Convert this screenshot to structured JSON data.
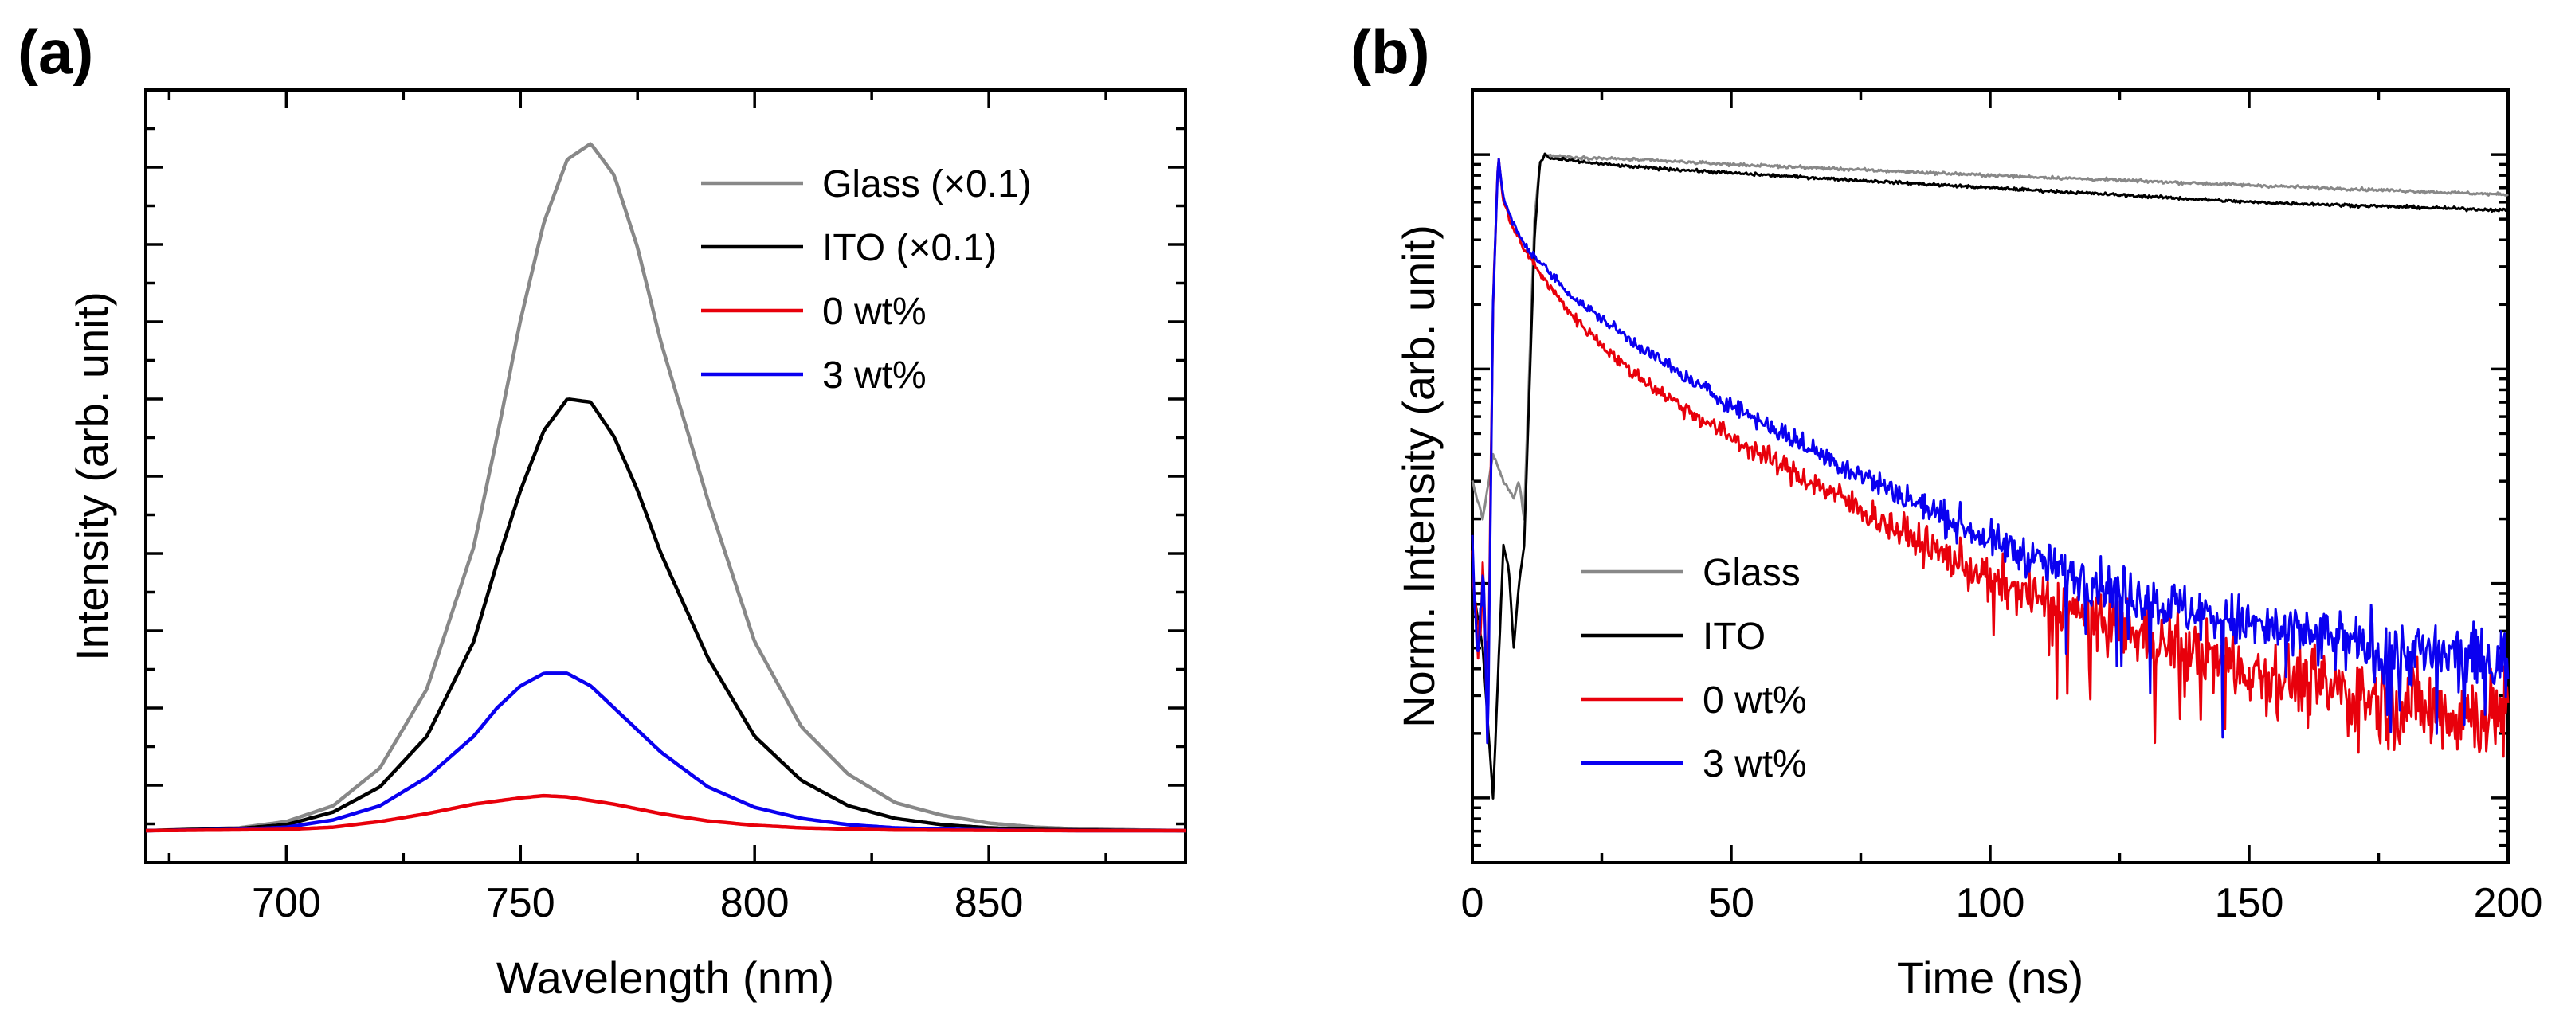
{
  "chart_data": [
    {
      "panel_label": "(a)",
      "type": "line",
      "xlabel": "Wavelength (nm)",
      "ylabel": "Intensity (arb. unit)",
      "xlim": [
        670,
        892
      ],
      "ylim": [
        -0.1,
        2.35
      ],
      "yticks_labeled": false,
      "y_scale": "linear",
      "x_ticks": [
        700,
        750,
        800,
        850
      ],
      "x_tick_labels": [
        "700",
        "750",
        "800",
        "850"
      ],
      "legend_position": "top-right",
      "series": [
        {
          "name": "Glass (×0.1)",
          "color": "#888888",
          "x": [
            670,
            690,
            700,
            710,
            720,
            730,
            740,
            745,
            750,
            755,
            760,
            765,
            770,
            775,
            780,
            790,
            800,
            810,
            820,
            830,
            840,
            850,
            860,
            870,
            892
          ],
          "y": [
            0.001,
            0.01,
            0.03,
            0.08,
            0.2,
            0.45,
            0.9,
            1.25,
            1.62,
            1.93,
            2.13,
            2.18,
            2.08,
            1.85,
            1.55,
            1.05,
            0.6,
            0.33,
            0.18,
            0.09,
            0.05,
            0.025,
            0.012,
            0.006,
            0.001
          ]
        },
        {
          "name": "ITO (×0.1)",
          "color": "#000000",
          "x": [
            670,
            690,
            700,
            710,
            720,
            730,
            740,
            745,
            750,
            755,
            760,
            765,
            770,
            775,
            780,
            790,
            800,
            810,
            820,
            830,
            840,
            850,
            860,
            870,
            892
          ],
          "y": [
            0.001,
            0.008,
            0.02,
            0.06,
            0.14,
            0.3,
            0.6,
            0.85,
            1.08,
            1.27,
            1.37,
            1.36,
            1.25,
            1.08,
            0.88,
            0.55,
            0.3,
            0.16,
            0.08,
            0.04,
            0.02,
            0.01,
            0.005,
            0.003,
            0.001
          ]
        },
        {
          "name": "0 wt%",
          "color": "#e8000b",
          "x": [
            670,
            700,
            710,
            720,
            730,
            740,
            750,
            755,
            760,
            770,
            780,
            790,
            800,
            810,
            820,
            830,
            850,
            870,
            892
          ],
          "y": [
            0.001,
            0.005,
            0.012,
            0.03,
            0.055,
            0.085,
            0.105,
            0.112,
            0.108,
            0.085,
            0.055,
            0.032,
            0.018,
            0.01,
            0.006,
            0.003,
            0.002,
            0.001,
            0.001
          ]
        },
        {
          "name": "3 wt%",
          "color": "#0a00f0",
          "x": [
            670,
            690,
            700,
            710,
            720,
            730,
            740,
            745,
            750,
            755,
            760,
            765,
            770,
            780,
            790,
            800,
            810,
            820,
            830,
            840,
            850,
            870,
            892
          ],
          "y": [
            0.001,
            0.005,
            0.012,
            0.035,
            0.08,
            0.17,
            0.3,
            0.39,
            0.46,
            0.5,
            0.5,
            0.46,
            0.39,
            0.25,
            0.14,
            0.075,
            0.04,
            0.02,
            0.01,
            0.006,
            0.003,
            0.001,
            0.001
          ]
        }
      ]
    },
    {
      "panel_label": "(b)",
      "type": "line",
      "xlabel": "Time (ns)",
      "ylabel": "Norm. Intensity (arb. unit)",
      "xlim": [
        0,
        200
      ],
      "y_scale": "log",
      "ylim": [
        0.0005,
        2
      ],
      "yticks_labeled": false,
      "x_ticks": [
        0,
        50,
        100,
        150,
        200
      ],
      "x_tick_labels": [
        "0",
        "50",
        "100",
        "150",
        "200"
      ],
      "legend_position": "bottom-left",
      "series": [
        {
          "name": "Glass",
          "color": "#888888",
          "x": [
            0,
            2,
            4,
            6,
            8,
            9,
            10,
            12,
            13,
            14,
            15,
            20,
            30,
            50,
            100,
            150,
            200
          ],
          "y": [
            0.03,
            0.02,
            0.04,
            0.03,
            0.025,
            0.03,
            0.02,
            0.5,
            0.9,
            1.0,
            0.99,
            0.97,
            0.95,
            0.9,
            0.8,
            0.72,
            0.65
          ]
        },
        {
          "name": "ITO",
          "color": "#000000",
          "x": [
            0,
            2,
            4,
            6,
            7,
            8,
            9,
            10,
            12,
            13,
            14,
            15,
            20,
            30,
            50,
            100,
            150,
            200
          ],
          "y": [
            0.01,
            0.005,
            0.001,
            0.015,
            0.012,
            0.005,
            0.01,
            0.015,
            0.4,
            0.9,
            1.0,
            0.96,
            0.93,
            0.88,
            0.82,
            0.7,
            0.6,
            0.55
          ]
        },
        {
          "name": "0 wt%",
          "color": "#e8000b",
          "x": [
            0,
            1,
            2,
            3,
            4,
            5,
            6,
            8,
            10,
            15,
            20,
            30,
            40,
            50,
            60,
            70,
            80,
            90,
            100,
            110,
            120,
            130,
            140,
            150,
            160,
            170,
            180,
            190,
            200
          ],
          "y": [
            0.015,
            0.005,
            0.01,
            0.003,
            0.2,
            1.0,
            0.6,
            0.45,
            0.36,
            0.24,
            0.17,
            0.1,
            0.068,
            0.048,
            0.035,
            0.026,
            0.019,
            0.014,
            0.0105,
            0.0085,
            0.0068,
            0.0056,
            0.0047,
            0.004,
            0.0035,
            0.003,
            0.0027,
            0.0025,
            0.0024
          ]
        },
        {
          "name": "3 wt%",
          "color": "#0a00f0",
          "x": [
            0,
            1,
            2,
            3,
            4,
            5,
            6,
            8,
            10,
            15,
            20,
            30,
            40,
            50,
            60,
            70,
            80,
            90,
            100,
            110,
            120,
            130,
            140,
            150,
            160,
            170,
            180,
            190,
            200
          ],
          "y": [
            0.015,
            0.004,
            0.012,
            0.002,
            0.2,
            1.0,
            0.62,
            0.47,
            0.38,
            0.28,
            0.21,
            0.14,
            0.095,
            0.068,
            0.05,
            0.037,
            0.028,
            0.021,
            0.016,
            0.0125,
            0.0102,
            0.0085,
            0.0073,
            0.0064,
            0.0057,
            0.0052,
            0.0048,
            0.0045,
            0.0043
          ]
        }
      ]
    }
  ]
}
